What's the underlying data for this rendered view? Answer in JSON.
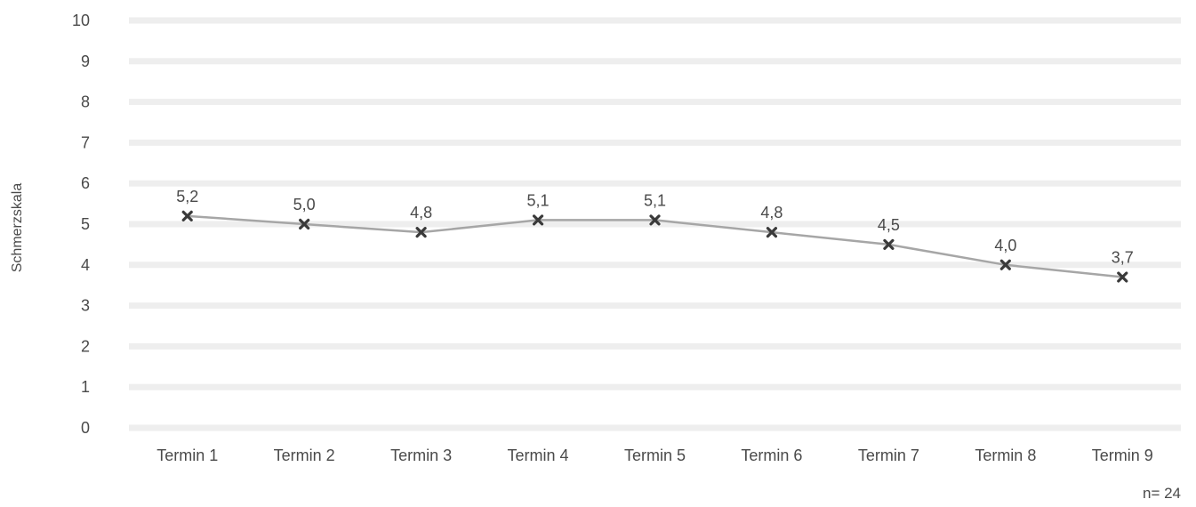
{
  "chart_data": {
    "type": "line",
    "title": "",
    "xlabel": "",
    "ylabel": "Schmerzskala",
    "ylim": [
      0,
      10
    ],
    "yticks": [
      "0",
      "1",
      "2",
      "3",
      "4",
      "5",
      "6",
      "7",
      "8",
      "9",
      "10"
    ],
    "categories": [
      "Termin 1",
      "Termin 2",
      "Termin 3",
      "Termin 4",
      "Termin 5",
      "Termin 6",
      "Termin 7",
      "Termin 8",
      "Termin 9"
    ],
    "series": [
      {
        "values": [
          5.2,
          5.0,
          4.8,
          5.1,
          5.1,
          4.8,
          4.5,
          4.0,
          3.7
        ],
        "labels": [
          "5,2",
          "5,0",
          "4,8",
          "5,1",
          "5,1",
          "4,8",
          "4,5",
          "4,0",
          "3,7"
        ],
        "line_color": "#a6a6a6",
        "marker_color": "#3a3a3a",
        "marker": "x"
      }
    ],
    "grid": true,
    "grid_color": "#eeeeee",
    "legend": "none",
    "note": "n= 24"
  }
}
